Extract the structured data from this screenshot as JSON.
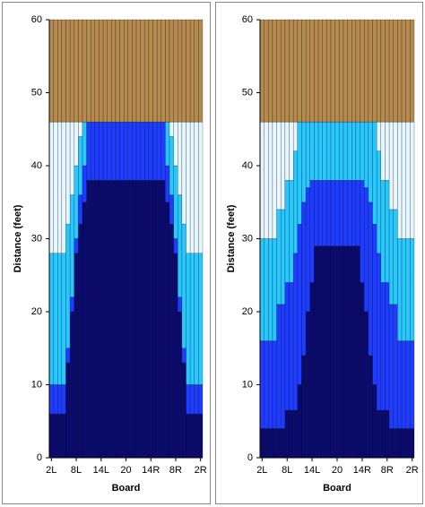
{
  "chart_data": [
    {
      "type": "stacked-bar",
      "x_label": "Board",
      "y_label": "Distance (feet)",
      "categories": [
        "2L",
        null,
        null,
        null,
        null,
        null,
        "8L",
        null,
        null,
        null,
        null,
        null,
        "14L",
        null,
        null,
        null,
        null,
        null,
        "20",
        null,
        null,
        null,
        null,
        null,
        "14R",
        null,
        null,
        null,
        null,
        null,
        "8R",
        null,
        null,
        null,
        null,
        null,
        "2R"
      ],
      "ylim": [
        0,
        60
      ],
      "yticks": [
        0,
        10,
        20,
        30,
        40,
        50,
        60
      ],
      "series": [
        {
          "color": "#0a0a6e",
          "values": [
            6,
            6,
            6,
            6,
            13,
            20,
            28,
            32,
            35,
            38,
            38,
            38,
            38,
            38,
            38,
            38,
            38,
            38,
            38,
            38,
            38,
            38,
            38,
            38,
            38,
            38,
            38,
            38,
            35,
            32,
            28,
            20,
            13,
            6,
            6,
            6,
            6
          ]
        },
        {
          "color": "#1e3cff",
          "values": [
            4,
            4,
            4,
            4,
            2,
            2,
            2,
            4,
            5,
            8,
            8,
            8,
            8,
            8,
            8,
            8,
            8,
            8,
            8,
            8,
            8,
            8,
            8,
            8,
            8,
            8,
            8,
            8,
            5,
            4,
            2,
            2,
            2,
            4,
            4,
            4,
            4
          ]
        },
        {
          "color": "#28c8ff",
          "values": [
            18,
            18,
            18,
            18,
            17,
            14,
            10,
            8,
            6,
            0,
            0,
            0,
            0,
            0,
            0,
            0,
            0,
            0,
            0,
            0,
            0,
            0,
            0,
            0,
            0,
            0,
            0,
            0,
            6,
            8,
            10,
            14,
            17,
            18,
            18,
            18,
            18
          ]
        },
        {
          "color": "#e6f6ff",
          "values": [
            18,
            18,
            18,
            18,
            14,
            10,
            6,
            2,
            0,
            0,
            0,
            0,
            0,
            0,
            0,
            0,
            0,
            0,
            0,
            0,
            0,
            0,
            0,
            0,
            0,
            0,
            0,
            0,
            0,
            2,
            6,
            10,
            14,
            18,
            18,
            18,
            18
          ]
        },
        {
          "color": "#b58a4e",
          "values": [
            14,
            14,
            14,
            14,
            14,
            14,
            14,
            14,
            14,
            14,
            14,
            14,
            14,
            14,
            14,
            14,
            14,
            14,
            14,
            14,
            14,
            14,
            14,
            14,
            14,
            14,
            14,
            14,
            14,
            14,
            14,
            14,
            14,
            14,
            14,
            14,
            14
          ]
        }
      ]
    },
    {
      "type": "stacked-bar",
      "x_label": "Board",
      "y_label": "Distance (feet)",
      "categories": [
        "2L",
        null,
        null,
        null,
        null,
        null,
        "8L",
        null,
        null,
        null,
        null,
        null,
        "14L",
        null,
        null,
        null,
        null,
        null,
        "20",
        null,
        null,
        null,
        null,
        null,
        "14R",
        null,
        null,
        null,
        null,
        null,
        "8R",
        null,
        null,
        null,
        null,
        null,
        "2R"
      ],
      "ylim": [
        0,
        60
      ],
      "yticks": [
        0,
        10,
        20,
        30,
        40,
        50,
        60
      ],
      "series": [
        {
          "color": "#0a0a6e",
          "values": [
            4,
            4,
            4,
            4,
            4,
            4,
            6.5,
            6.5,
            6.5,
            10,
            14,
            20,
            24,
            29,
            29,
            29,
            29,
            29,
            29,
            29,
            29,
            29,
            29,
            29,
            24,
            20,
            14,
            10,
            6.5,
            6.5,
            6.5,
            4,
            4,
            4,
            4,
            4,
            4
          ]
        },
        {
          "color": "#1e3cff",
          "values": [
            12,
            12,
            12,
            12,
            17,
            17,
            17.5,
            17.5,
            21.5,
            22,
            21,
            17,
            14,
            9,
            9,
            9,
            9,
            9,
            9,
            9,
            9,
            9,
            9,
            9,
            14,
            17,
            21,
            22,
            21.5,
            17.5,
            17.5,
            17,
            17,
            12,
            12,
            12,
            12
          ]
        },
        {
          "color": "#28c8ff",
          "values": [
            14,
            14,
            14,
            14,
            13,
            13,
            14,
            14,
            14,
            14,
            11,
            9,
            8,
            8,
            8,
            8,
            8,
            8,
            8,
            8,
            8,
            8,
            8,
            8,
            8,
            9,
            11,
            14,
            14,
            14,
            14,
            13,
            13,
            14,
            14,
            14,
            14
          ]
        },
        {
          "color": "#e6f6ff",
          "values": [
            16,
            16,
            16,
            16,
            12,
            12,
            8,
            8,
            4,
            0,
            0,
            0,
            0,
            0,
            0,
            0,
            0,
            0,
            0,
            0,
            0,
            0,
            0,
            0,
            0,
            0,
            0,
            0,
            4,
            8,
            8,
            12,
            12,
            16,
            16,
            16,
            16
          ]
        },
        {
          "color": "#b58a4e",
          "values": [
            14,
            14,
            14,
            14,
            14,
            14,
            14,
            14,
            14,
            14,
            14,
            14,
            14,
            14,
            14,
            14,
            14,
            14,
            14,
            14,
            14,
            14,
            14,
            14,
            14,
            14,
            14,
            14,
            14,
            14,
            14,
            14,
            14,
            14,
            14,
            14,
            14
          ]
        }
      ]
    }
  ]
}
